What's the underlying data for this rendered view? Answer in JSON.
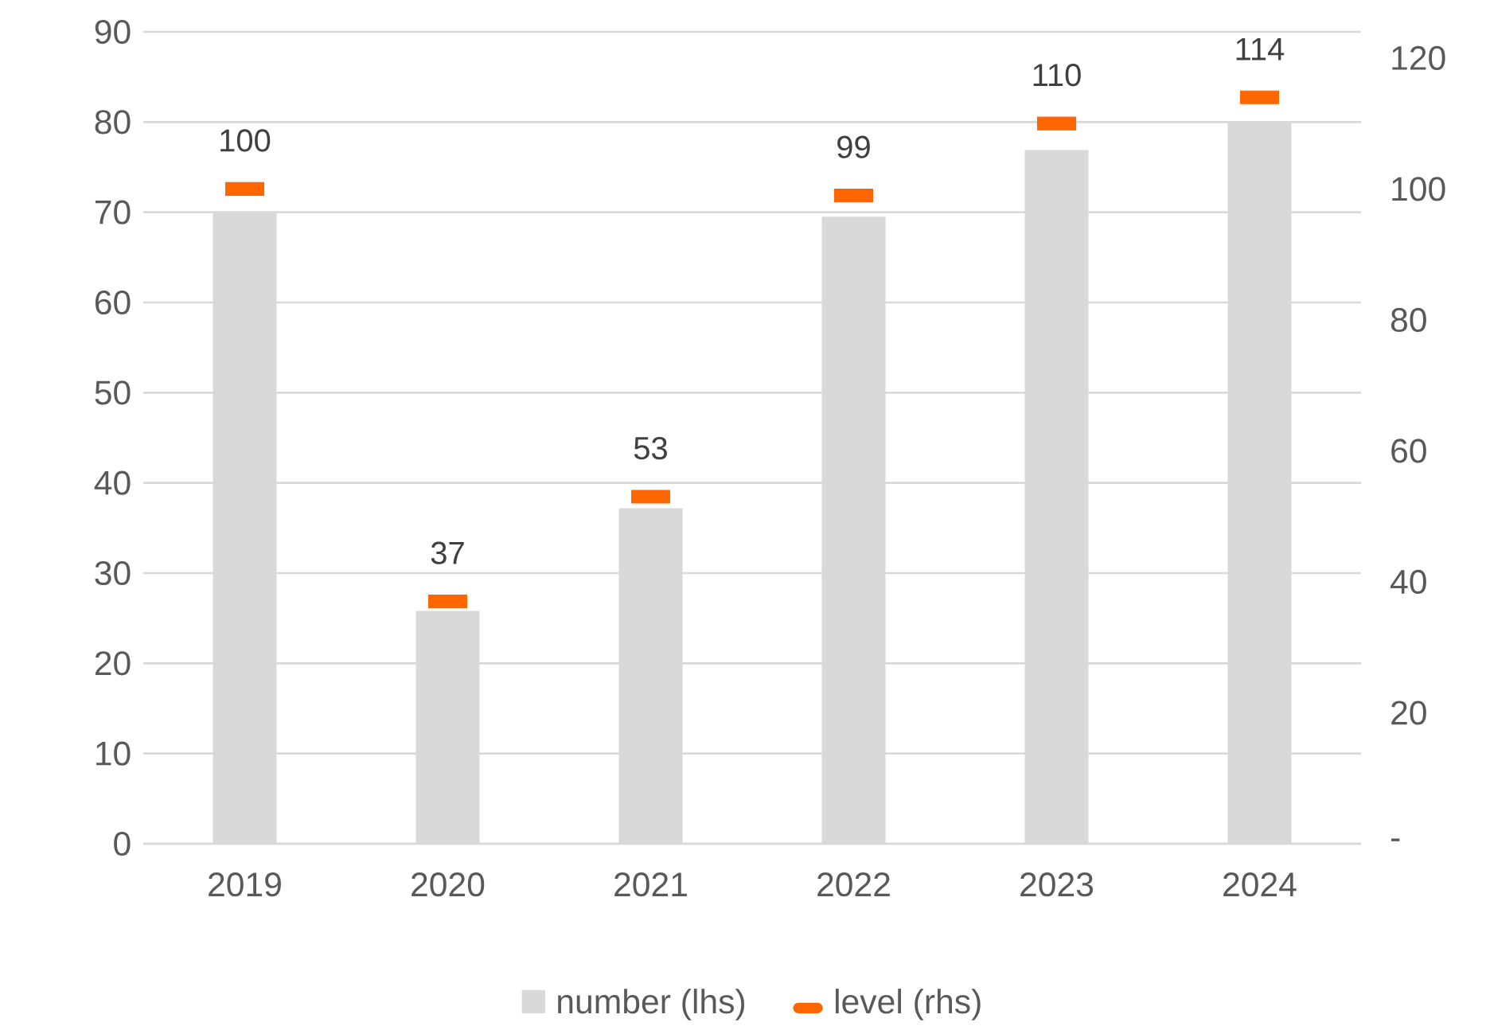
{
  "chart_data": {
    "type": "bar",
    "categories": [
      "2019",
      "2020",
      "2021",
      "2022",
      "2023",
      "2024"
    ],
    "series": [
      {
        "name": "number (lhs)",
        "color": "#d9d9d9",
        "values": [
          70.0,
          25.8,
          37.2,
          69.5,
          76.9,
          80.1
        ]
      },
      {
        "name": "level (rhs)",
        "type": "scatter",
        "axis": "y2",
        "color": "#ff6600",
        "values": [
          100,
          37,
          53,
          99,
          110,
          114
        ],
        "value_labels": [
          "100",
          "37",
          "53",
          "99",
          "110",
          "114"
        ]
      }
    ],
    "ylim": [
      0,
      90
    ],
    "yticks": [
      0,
      10,
      20,
      30,
      40,
      50,
      60,
      70,
      80,
      90
    ],
    "y2lim": [
      0,
      124
    ],
    "y2ticks": [
      {
        "value": 0,
        "label": "-"
      },
      20,
      40,
      60,
      80,
      100,
      120
    ],
    "grid": "y",
    "legend": "bottom"
  }
}
